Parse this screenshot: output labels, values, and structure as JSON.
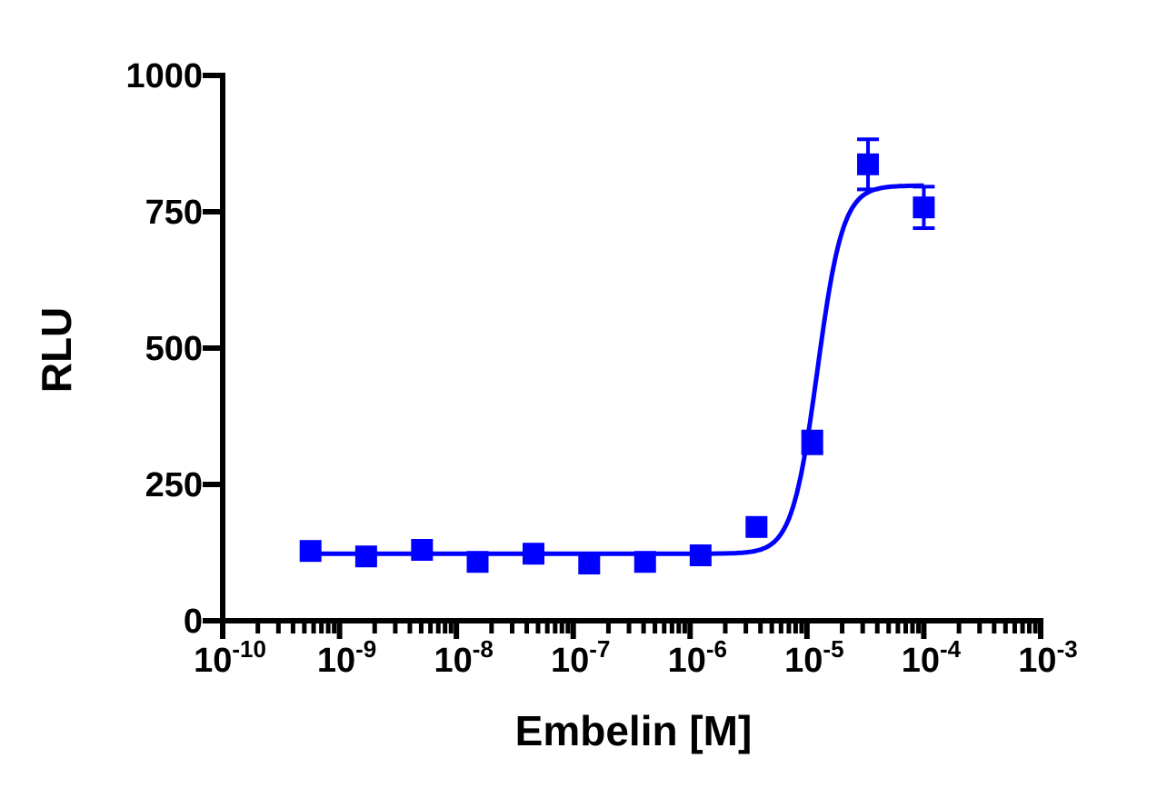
{
  "chart_data": {
    "type": "scatter",
    "x_label": "Embelin [M]",
    "y_label": "RLU",
    "log_x": true,
    "color": "#0000ff",
    "x": [
      5.65e-10,
      1.69e-09,
      5.08e-09,
      1.52e-08,
      4.57e-08,
      1.37e-07,
      4.12e-07,
      1.23e-06,
      3.7e-06,
      1.11e-05,
      3.33e-05,
      0.0001
    ],
    "values": [
      128,
      118,
      130,
      108,
      123,
      105,
      108,
      120,
      172,
      327,
      837,
      758
    ],
    "errors": [
      null,
      null,
      null,
      null,
      null,
      null,
      null,
      null,
      null,
      20,
      46,
      38
    ],
    "fit": {
      "bottom": 123,
      "top": 798,
      "log_ec50": -4.91,
      "hill": 4
    },
    "xlim": [
      1e-10,
      0.001
    ],
    "ylim": [
      0,
      1000
    ],
    "xticks": [
      {
        "value": 1e-10,
        "label": "10",
        "exponent": "-10"
      },
      {
        "value": 1e-09,
        "label": "10",
        "exponent": "-9"
      },
      {
        "value": 1e-08,
        "label": "10",
        "exponent": "-8"
      },
      {
        "value": 1e-07,
        "label": "10",
        "exponent": "-7"
      },
      {
        "value": 1e-06,
        "label": "10",
        "exponent": "-6"
      },
      {
        "value": 1e-05,
        "label": "10",
        "exponent": "-5"
      },
      {
        "value": 0.0001,
        "label": "10",
        "exponent": "-4"
      },
      {
        "value": 0.001,
        "label": "10",
        "exponent": "-3"
      }
    ],
    "yticks": [
      0,
      250,
      500,
      750,
      1000
    ]
  }
}
